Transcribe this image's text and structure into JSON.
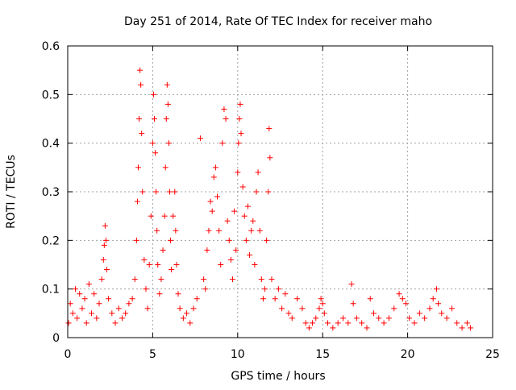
{
  "chart_data": {
    "type": "scatter",
    "title": "Day 251 of 2014, Rate Of TEC Index for receiver maho",
    "xlabel": "GPS time / hours",
    "ylabel": "ROTI / TECUs",
    "xlim": [
      0,
      25
    ],
    "ylim": [
      0,
      0.6
    ],
    "x_ticks": [
      "0",
      "5",
      "10",
      "15",
      "20",
      "25"
    ],
    "y_ticks": [
      "0",
      "0.1",
      "0.2",
      "0.3",
      "0.4",
      "0.5",
      "0.6"
    ],
    "grid": true,
    "marker": "plus",
    "marker_color": "#ff0000",
    "series": [
      {
        "x": [
          0.05,
          0.15,
          0.3,
          0.45,
          0.55,
          0.7,
          0.85,
          1.0,
          1.1,
          1.25,
          1.4,
          1.55,
          1.7,
          1.85,
          2.0,
          2.1,
          2.15,
          2.2,
          2.25,
          2.3,
          2.4,
          2.6,
          2.8,
          3.0,
          3.2,
          3.4,
          3.6,
          3.8,
          3.95,
          4.05,
          4.1,
          4.15,
          4.2,
          4.25,
          4.3,
          4.35,
          4.4,
          4.5,
          4.6,
          4.7,
          4.8,
          4.9,
          5.0,
          5.05,
          5.1,
          5.15,
          5.2,
          5.25,
          5.3,
          5.4,
          5.5,
          5.6,
          5.7,
          5.75,
          5.8,
          5.85,
          5.9,
          5.95,
          6.0,
          6.05,
          6.1,
          6.2,
          6.3,
          6.35,
          6.4,
          6.5,
          6.6,
          6.8,
          7.0,
          7.2,
          7.4,
          7.6,
          7.8,
          8.0,
          8.1,
          8.2,
          8.3,
          8.4,
          8.5,
          8.6,
          8.7,
          8.8,
          8.9,
          9.0,
          9.1,
          9.2,
          9.3,
          9.4,
          9.5,
          9.6,
          9.7,
          9.8,
          9.9,
          10.0,
          10.05,
          10.1,
          10.15,
          10.2,
          10.3,
          10.4,
          10.5,
          10.6,
          10.7,
          10.8,
          10.9,
          11.0,
          11.1,
          11.2,
          11.3,
          11.4,
          11.5,
          11.6,
          11.7,
          11.8,
          11.85,
          11.9,
          12.0,
          12.2,
          12.4,
          12.6,
          12.8,
          13.0,
          13.2,
          13.5,
          13.8,
          14.0,
          14.2,
          14.4,
          14.6,
          14.8,
          14.9,
          15.0,
          15.1,
          15.3,
          15.6,
          15.9,
          16.2,
          16.5,
          16.7,
          16.8,
          17.0,
          17.3,
          17.6,
          17.8,
          18.0,
          18.3,
          18.6,
          18.9,
          19.2,
          19.5,
          19.7,
          19.9,
          20.1,
          20.4,
          20.7,
          21.0,
          21.3,
          21.5,
          21.7,
          21.8,
          22.0,
          22.3,
          22.6,
          22.9,
          23.2,
          23.5,
          23.7
        ],
        "y": [
          0.03,
          0.07,
          0.05,
          0.1,
          0.04,
          0.09,
          0.06,
          0.08,
          0.03,
          0.11,
          0.05,
          0.09,
          0.04,
          0.07,
          0.12,
          0.16,
          0.19,
          0.23,
          0.2,
          0.14,
          0.08,
          0.05,
          0.03,
          0.06,
          0.04,
          0.05,
          0.07,
          0.08,
          0.12,
          0.2,
          0.28,
          0.35,
          0.45,
          0.55,
          0.52,
          0.42,
          0.3,
          0.16,
          0.1,
          0.06,
          0.15,
          0.25,
          0.4,
          0.5,
          0.45,
          0.38,
          0.3,
          0.22,
          0.15,
          0.09,
          0.12,
          0.18,
          0.25,
          0.35,
          0.45,
          0.52,
          0.48,
          0.4,
          0.3,
          0.2,
          0.14,
          0.25,
          0.3,
          0.22,
          0.15,
          0.09,
          0.06,
          0.04,
          0.05,
          0.03,
          0.06,
          0.08,
          0.41,
          0.12,
          0.1,
          0.18,
          0.22,
          0.28,
          0.26,
          0.33,
          0.35,
          0.29,
          0.22,
          0.15,
          0.4,
          0.47,
          0.45,
          0.24,
          0.2,
          0.16,
          0.12,
          0.26,
          0.18,
          0.34,
          0.4,
          0.45,
          0.48,
          0.42,
          0.31,
          0.25,
          0.2,
          0.27,
          0.17,
          0.22,
          0.24,
          0.15,
          0.3,
          0.34,
          0.22,
          0.12,
          0.08,
          0.1,
          0.2,
          0.3,
          0.43,
          0.37,
          0.12,
          0.08,
          0.1,
          0.06,
          0.09,
          0.05,
          0.04,
          0.08,
          0.06,
          0.03,
          0.02,
          0.03,
          0.04,
          0.06,
          0.08,
          0.07,
          0.05,
          0.03,
          0.02,
          0.03,
          0.04,
          0.03,
          0.11,
          0.07,
          0.04,
          0.03,
          0.02,
          0.08,
          0.05,
          0.04,
          0.03,
          0.04,
          0.06,
          0.09,
          0.08,
          0.07,
          0.04,
          0.03,
          0.05,
          0.04,
          0.06,
          0.08,
          0.1,
          0.07,
          0.05,
          0.04,
          0.06,
          0.03,
          0.02,
          0.03,
          0.02
        ]
      }
    ]
  }
}
